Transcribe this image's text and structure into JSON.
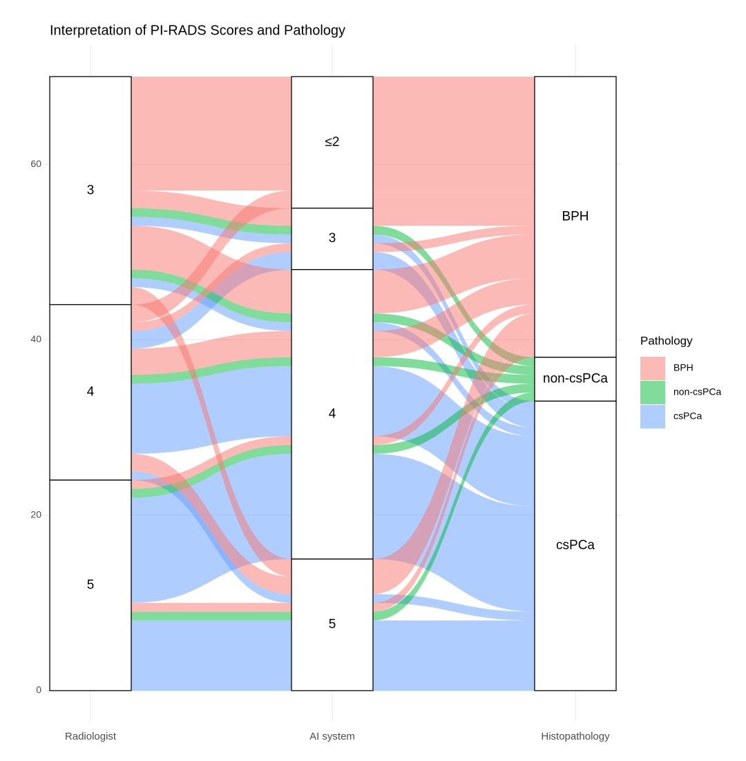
{
  "chart_data": {
    "type": "alluvial",
    "title": "Interpretation of PI-RADS Scores and Pathology",
    "axes": [
      "Radiologist",
      "AI system",
      "Histopathology"
    ],
    "strata": [
      [
        "3",
        "4",
        "5"
      ],
      [
        "≤2",
        "3",
        "4",
        "5"
      ],
      [
        "BPH",
        "non-csPCa",
        "csPCa"
      ]
    ],
    "legend": {
      "title": "Pathology",
      "position": "right"
    },
    "series": [
      {
        "name": "BPH",
        "color": "#F8766D"
      },
      {
        "name": "non-csPCa",
        "color": "#00BA38"
      },
      {
        "name": "csPCa",
        "color": "#619CFF"
      }
    ],
    "alluvia": [
      {
        "path": [
          "5",
          "5",
          "csPCa"
        ],
        "count": 8
      },
      {
        "path": [
          "5",
          "4",
          "csPCa"
        ],
        "count": 12
      },
      {
        "path": [
          "4",
          "5",
          "csPCa"
        ],
        "count": 1
      },
      {
        "path": [
          "4",
          "4",
          "csPCa"
        ],
        "count": 8
      },
      {
        "path": [
          "4",
          "3",
          "csPCa"
        ],
        "count": 2
      },
      {
        "path": [
          "3",
          "4",
          "csPCa"
        ],
        "count": 1
      },
      {
        "path": [
          "3",
          "3",
          "csPCa"
        ],
        "count": 1
      },
      {
        "path": [
          "5",
          "5",
          "non-csPCa"
        ],
        "count": 1
      },
      {
        "path": [
          "5",
          "4",
          "non-csPCa"
        ],
        "count": 1
      },
      {
        "path": [
          "4",
          "4",
          "non-csPCa"
        ],
        "count": 1
      },
      {
        "path": [
          "3",
          "4",
          "non-csPCa"
        ],
        "count": 1
      },
      {
        "path": [
          "3",
          "3",
          "non-csPCa"
        ],
        "count": 1
      },
      {
        "path": [
          "5",
          "5",
          "BPH"
        ],
        "count": 1
      },
      {
        "path": [
          "5",
          "4",
          "BPH"
        ],
        "count": 1
      },
      {
        "path": [
          "4",
          "5",
          "BPH"
        ],
        "count": 2
      },
      {
        "path": [
          "4",
          "4",
          "BPH"
        ],
        "count": 3
      },
      {
        "path": [
          "4",
          "3",
          "BPH"
        ],
        "count": 1
      },
      {
        "path": [
          "4",
          "≤2",
          "BPH"
        ],
        "count": 2
      },
      {
        "path": [
          "3",
          "5",
          "BPH"
        ],
        "count": 2
      },
      {
        "path": [
          "3",
          "4",
          "BPH"
        ],
        "count": 5
      },
      {
        "path": [
          "3",
          "3",
          "BPH"
        ],
        "count": 2
      },
      {
        "path": [
          "3",
          "≤2",
          "BPH"
        ],
        "count": 13
      }
    ],
    "ylim": [
      0,
      70
    ],
    "yticks": [
      0,
      20,
      40,
      60
    ],
    "grid": true
  }
}
